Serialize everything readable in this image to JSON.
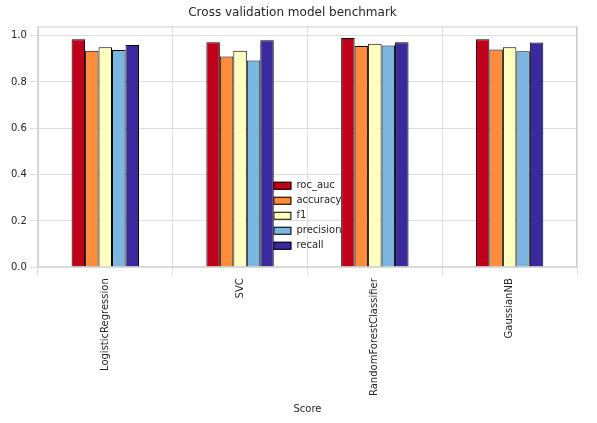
{
  "chart_data": {
    "type": "bar",
    "title": "Cross validation model benchmark",
    "x_label": "Score",
    "categories": [
      "LogisticRegression",
      "SVC",
      "RandomForestClassifier",
      "GaussianNB"
    ],
    "series": [
      {
        "name": "roc_auc",
        "color": "#c0001a",
        "values": [
          0.985,
          0.972,
          0.99,
          0.985
        ]
      },
      {
        "name": "accuracy",
        "color": "#fd8d3c",
        "values": [
          0.935,
          0.91,
          0.955,
          0.94
        ]
      },
      {
        "name": "f1",
        "color": "#ffffc0",
        "values": [
          0.95,
          0.935,
          0.965,
          0.95
        ]
      },
      {
        "name": "precision",
        "color": "#7bb6e0",
        "values": [
          0.938,
          0.893,
          0.957,
          0.933
        ]
      },
      {
        "name": "recall",
        "color": "#3a2a9c",
        "values": [
          0.96,
          0.98,
          0.972,
          0.97
        ]
      }
    ],
    "ylim": [
      0,
      1.04
    ],
    "yticks": [
      {
        "value": 0,
        "label": "0.0"
      },
      0.2,
      0.4,
      0.6,
      0.8,
      {
        "value": 1,
        "label": "1.0"
      }
    ],
    "grid": true,
    "legend": "bottom"
  }
}
